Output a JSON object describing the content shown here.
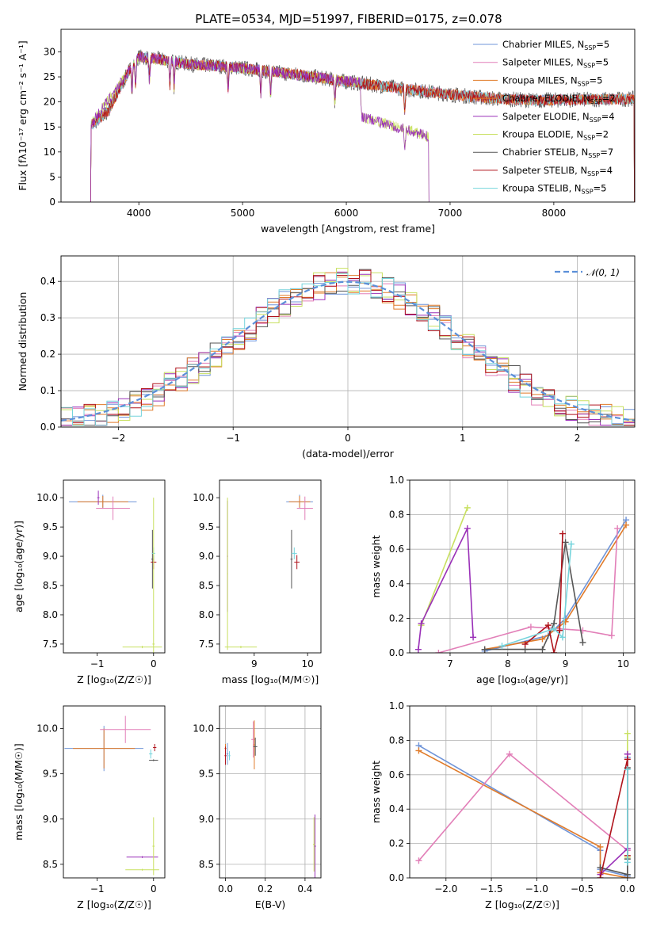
{
  "figure_title": "PLATE=0534, MJD=51997, FIBERID=0175, z=0.078",
  "models": [
    {
      "name": "Chabrier MILES",
      "nssp": "5",
      "color": "#6f94d8"
    },
    {
      "name": "Salpeter MILES",
      "nssp": "5",
      "color": "#e27fb8"
    },
    {
      "name": "Kroupa MILES",
      "nssp": "5",
      "color": "#e07b2a"
    },
    {
      "name": "Chabrier ELODIE",
      "nssp": "2",
      "color": "#e07b2a"
    },
    {
      "name": "Salpeter ELODIE",
      "nssp": "4",
      "color": "#9a30b8"
    },
    {
      "name": "Kroupa ELODIE",
      "nssp": "2",
      "color": "#c8e060"
    },
    {
      "name": "Chabrier STELIB",
      "nssp": "7",
      "color": "#555555"
    },
    {
      "name": "Salpeter STELIB",
      "nssp": "4",
      "color": "#b0141c"
    },
    {
      "name": "Kroupa STELIB",
      "nssp": "5",
      "color": "#74d4dc"
    }
  ],
  "nssp_prefix": "N",
  "nssp_sub": "SSP",
  "chart_data": [
    {
      "id": "spectrum",
      "type": "line",
      "xlabel": "wavelength [Angstrom, rest frame]",
      "ylabel": "Flux [fλ10⁻¹⁷ erg cm⁻² s⁻¹ A⁻¹]",
      "xlim": [
        3250,
        8780
      ],
      "ylim": [
        0,
        34.5
      ],
      "xticks": [
        4000,
        5000,
        6000,
        7000,
        8000
      ],
      "yticks": [
        0,
        5,
        10,
        15,
        20,
        25,
        30
      ],
      "legend": "upper right",
      "grid": false,
      "observed_continuum": {
        "x": [
          3520,
          3700,
          3900,
          4000,
          4200,
          4500,
          4900,
          5300,
          5700,
          6000,
          6300,
          6600,
          7000,
          7400,
          7800,
          8100,
          8400,
          8780
        ],
        "y": [
          15,
          18,
          26,
          29,
          28.5,
          27.5,
          27,
          26,
          25,
          24,
          23.3,
          22.5,
          21.5,
          20.7,
          20.3,
          20.4,
          20.5,
          20.6
        ]
      },
      "elodie_continuum": {
        "x": [
          3520,
          3900,
          4000,
          4500,
          5000,
          5500,
          6000,
          6130,
          6150,
          6400,
          6600,
          6800
        ],
        "y": [
          15,
          26,
          29,
          27.5,
          26.8,
          25.4,
          24.2,
          23.9,
          17,
          15.5,
          14.3,
          13
        ]
      },
      "absorption_lines": [
        3934,
        3969,
        4102,
        4300,
        4340,
        4861,
        5175,
        5270,
        5890,
        6563
      ]
    },
    {
      "id": "residuals",
      "type": "bar",
      "xlabel": "(data-model)/error",
      "ylabel": "Normed distribution",
      "xlim": [
        -2.5,
        2.5
      ],
      "ylim": [
        0,
        0.47
      ],
      "xticks": [
        -2,
        -1,
        0,
        1,
        2
      ],
      "yticks": [
        0.0,
        0.1,
        0.2,
        0.3,
        0.4
      ],
      "grid": true,
      "legend": "upper right",
      "reference_label": "𝒩(0, 1)",
      "reference_color": "#5b8fd8",
      "bin_width": 0.1
    },
    {
      "id": "age-vs-Z",
      "type": "scatter",
      "xlabel": "Z [log₁₀(Z/Z☉)]",
      "ylabel": "age  [log₁₀(age/yr)]",
      "xlim": [
        -1.6,
        0.2
      ],
      "ylim": [
        7.35,
        10.3
      ],
      "xticks": [
        -1,
        0
      ],
      "yticks": [
        7.5,
        8.0,
        8.5,
        9.0,
        9.5,
        10.0
      ],
      "grid": false
    },
    {
      "id": "age-vs-mass",
      "type": "scatter",
      "xlabel": "mass [log₁₀(M/M☉)]",
      "ylabel": "",
      "xlim": [
        8.35,
        10.25
      ],
      "ylim": [
        7.35,
        10.3
      ],
      "xticks": [
        9,
        10
      ],
      "yticks": [
        7.5,
        8.0,
        8.5,
        9.0,
        9.5,
        10.0
      ],
      "grid": false
    },
    {
      "id": "weight-vs-age",
      "type": "line",
      "xlabel": "age  [log₁₀(age/yr)]",
      "ylabel": "mass weight",
      "xlim": [
        6.3,
        10.2
      ],
      "ylim": [
        0,
        1.0
      ],
      "xticks": [
        7,
        8,
        9,
        10
      ],
      "yticks": [
        0.0,
        0.2,
        0.4,
        0.6,
        0.8,
        1.0
      ],
      "grid": true,
      "series": [
        {
          "model": 0,
          "x": [
            7.6,
            8.7,
            9.0,
            10.05
          ],
          "y": [
            0.01,
            0.1,
            0.2,
            0.77
          ]
        },
        {
          "model": 2,
          "x": [
            7.6,
            8.6,
            9.0,
            10.05
          ],
          "y": [
            0.02,
            0.08,
            0.18,
            0.74
          ]
        },
        {
          "model": 1,
          "x": [
            6.8,
            8.4,
            9.3,
            9.8,
            9.9
          ],
          "y": [
            0.0,
            0.15,
            0.13,
            0.1,
            0.72
          ]
        },
        {
          "model": 5,
          "x": [
            6.5,
            7.3
          ],
          "y": [
            0.16,
            0.84
          ]
        },
        {
          "model": 4,
          "x": [
            6.45,
            6.5,
            7.3,
            7.4
          ],
          "y": [
            0.02,
            0.17,
            0.72,
            0.09
          ]
        },
        {
          "model": 6,
          "x": [
            7.6,
            8.3,
            8.6,
            8.8,
            9.0,
            9.3
          ],
          "y": [
            0.02,
            0.02,
            0.02,
            0.17,
            0.64,
            0.06
          ]
        },
        {
          "model": 7,
          "x": [
            8.3,
            8.7,
            8.8,
            8.9,
            8.95
          ],
          "y": [
            0.05,
            0.16,
            0.0,
            0.13,
            0.69
          ]
        },
        {
          "model": 8,
          "x": [
            7.9,
            8.8,
            8.95,
            9.1
          ],
          "y": [
            0.04,
            0.14,
            0.09,
            0.63
          ]
        }
      ]
    },
    {
      "id": "mass-vs-Z",
      "type": "scatter",
      "xlabel": "Z [log₁₀(Z/Z☉)]",
      "ylabel": "mass [log₁₀(M/M☉)]",
      "xlim": [
        -1.6,
        0.2
      ],
      "ylim": [
        8.35,
        10.25
      ],
      "xticks": [
        -1,
        0
      ],
      "yticks": [
        8.5,
        9.0,
        9.5,
        10.0
      ],
      "grid": false
    },
    {
      "id": "mass-vs-EBV",
      "type": "scatter",
      "xlabel": "E(B-V)",
      "ylabel": "",
      "xlim": [
        -0.03,
        0.48
      ],
      "ylim": [
        8.35,
        10.25
      ],
      "xticks": [
        0.0,
        0.2,
        0.4
      ],
      "yticks": [
        8.5,
        9.0,
        9.5,
        10.0
      ],
      "grid": true
    },
    {
      "id": "weight-vs-Z",
      "type": "line",
      "xlabel": "Z [log₁₀(Z/Z☉)]",
      "ylabel": "mass weight",
      "xlim": [
        -2.4,
        0.08
      ],
      "ylim": [
        0,
        1.0
      ],
      "xticks": [
        -2.0,
        -1.5,
        -1.0,
        -0.5,
        0.0
      ],
      "yticks": [
        0.0,
        0.2,
        0.4,
        0.6,
        0.8,
        1.0
      ],
      "grid": true,
      "series": [
        {
          "model": 0,
          "x": [
            -2.3,
            -0.3,
            -0.3,
            0.0,
            0.0
          ],
          "y": [
            0.77,
            0.16,
            0.05,
            0.01,
            0.7
          ]
        },
        {
          "model": 2,
          "x": [
            -2.3,
            -0.3,
            -0.3,
            0.0,
            0.0
          ],
          "y": [
            0.74,
            0.18,
            0.03,
            0.0,
            0.72
          ]
        },
        {
          "model": 1,
          "x": [
            -2.3,
            -1.3,
            0.0
          ],
          "y": [
            0.1,
            0.72,
            0.16
          ]
        },
        {
          "model": 5,
          "x": [
            0.0,
            0.0
          ],
          "y": [
            0.12,
            0.84
          ]
        },
        {
          "model": 4,
          "x": [
            -0.3,
            0.0,
            0.0
          ],
          "y": [
            0.02,
            0.17,
            0.72
          ]
        },
        {
          "model": 6,
          "x": [
            -0.3,
            0.0,
            0.0,
            0.0
          ],
          "y": [
            0.06,
            0.02,
            0.64,
            0.11
          ]
        },
        {
          "model": 7,
          "x": [
            -0.3,
            0.0,
            0.0
          ],
          "y": [
            0.0,
            0.69,
            0.13
          ]
        },
        {
          "model": 8,
          "x": [
            0.0,
            0.0
          ],
          "y": [
            0.09,
            0.63
          ]
        }
      ]
    }
  ]
}
